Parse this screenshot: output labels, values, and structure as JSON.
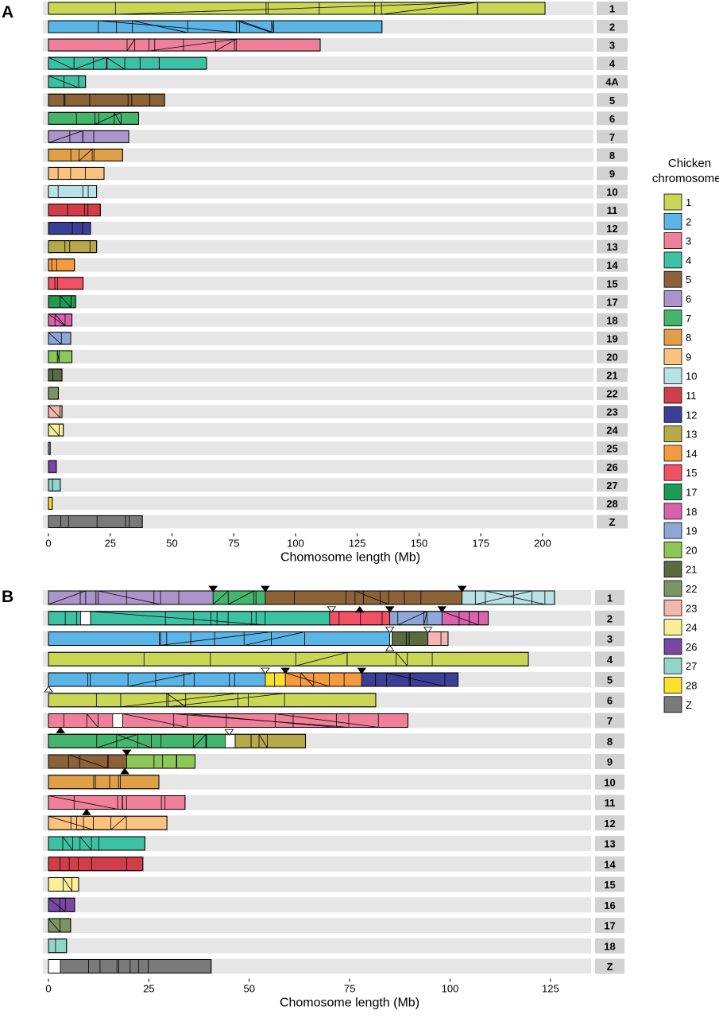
{
  "chart_data": [
    {
      "panel": "A",
      "type": "bar",
      "xlabel": "Chomosome length (Mb)",
      "xlim": [
        0,
        210
      ],
      "xticks": [
        0,
        25,
        50,
        75,
        100,
        125,
        150,
        175,
        200
      ],
      "chromosomes": [
        {
          "label": "1",
          "segments": [
            {
              "start": 0,
              "end": 201,
              "color": "1"
            }
          ]
        },
        {
          "label": "2",
          "segments": [
            {
              "start": 0,
              "end": 135,
              "color": "2"
            }
          ]
        },
        {
          "label": "3",
          "segments": [
            {
              "start": 0,
              "end": 110,
              "color": "3"
            }
          ]
        },
        {
          "label": "4",
          "segments": [
            {
              "start": 0,
              "end": 64,
              "color": "4"
            }
          ]
        },
        {
          "label": "4A",
          "segments": [
            {
              "start": 0,
              "end": 15,
              "color": "4"
            }
          ]
        },
        {
          "label": "5",
          "segments": [
            {
              "start": 0,
              "end": 47,
              "color": "5"
            }
          ]
        },
        {
          "label": "6",
          "segments": [
            {
              "start": 0,
              "end": 36.5,
              "color": "7"
            }
          ]
        },
        {
          "label": "7",
          "segments": [
            {
              "start": 0,
              "end": 32.5,
              "color": "6"
            }
          ]
        },
        {
          "label": "8",
          "segments": [
            {
              "start": 0,
              "end": 30,
              "color": "8"
            }
          ]
        },
        {
          "label": "9",
          "segments": [
            {
              "start": 0,
              "end": 22.5,
              "color": "9"
            }
          ]
        },
        {
          "label": "10",
          "segments": [
            {
              "start": 0,
              "end": 19.5,
              "color": "10"
            }
          ]
        },
        {
          "label": "11",
          "segments": [
            {
              "start": 0,
              "end": 21,
              "color": "11"
            }
          ]
        },
        {
          "label": "12",
          "segments": [
            {
              "start": 0,
              "end": 17,
              "color": "12"
            }
          ]
        },
        {
          "label": "13",
          "segments": [
            {
              "start": 0,
              "end": 19.5,
              "color": "13"
            }
          ]
        },
        {
          "label": "14",
          "segments": [
            {
              "start": 0,
              "end": 10.5,
              "color": "14"
            }
          ]
        },
        {
          "label": "15",
          "segments": [
            {
              "start": 0,
              "end": 14,
              "color": "15"
            }
          ]
        },
        {
          "label": "17",
          "segments": [
            {
              "start": 0,
              "end": 11,
              "color": "17"
            }
          ]
        },
        {
          "label": "18",
          "segments": [
            {
              "start": 0,
              "end": 9.5,
              "color": "18"
            }
          ]
        },
        {
          "label": "19",
          "segments": [
            {
              "start": 0,
              "end": 9,
              "color": "19"
            }
          ]
        },
        {
          "label": "20",
          "segments": [
            {
              "start": 0,
              "end": 9.5,
              "color": "20"
            }
          ]
        },
        {
          "label": "21",
          "segments": [
            {
              "start": 0,
              "end": 5.5,
              "color": "21"
            }
          ]
        },
        {
          "label": "22",
          "segments": [
            {
              "start": 0,
              "end": 4,
              "color": "22"
            }
          ]
        },
        {
          "label": "23",
          "segments": [
            {
              "start": 0,
              "end": 5.5,
              "color": "23"
            }
          ]
        },
        {
          "label": "24",
          "segments": [
            {
              "start": 0,
              "end": 6,
              "color": "24"
            }
          ]
        },
        {
          "label": "25",
          "segments": [
            {
              "start": 0,
              "end": 0.7,
              "color": "6"
            }
          ]
        },
        {
          "label": "26",
          "segments": [
            {
              "start": 0,
              "end": 3.2,
              "color": "26"
            }
          ]
        },
        {
          "label": "27",
          "segments": [
            {
              "start": 0,
              "end": 4.8,
              "color": "27"
            }
          ]
        },
        {
          "label": "28",
          "segments": [
            {
              "start": 0,
              "end": 1.5,
              "color": "28"
            }
          ]
        },
        {
          "label": "Z",
          "segments": [
            {
              "start": 0,
              "end": 38,
              "color": "Z"
            }
          ]
        }
      ]
    },
    {
      "panel": "B",
      "type": "bar",
      "xlabel": "Chomosome length (Mb)",
      "xlim": [
        0,
        128
      ],
      "xticks": [
        0,
        25,
        50,
        75,
        100,
        125
      ],
      "chromosomes": [
        {
          "label": "1",
          "segments": [
            {
              "start": 0,
              "end": 41,
              "color": "6"
            },
            {
              "start": 41,
              "end": 54,
              "color": "7"
            },
            {
              "start": 54,
              "end": 103,
              "color": "5"
            },
            {
              "start": 103,
              "end": 126,
              "color": "10"
            }
          ]
        },
        {
          "label": "2",
          "segments": [
            {
              "start": 0,
              "end": 8,
              "color": "4"
            },
            {
              "start": 8,
              "end": 10.5,
              "color": "white"
            },
            {
              "start": 10.5,
              "end": 70,
              "color": "4"
            },
            {
              "start": 70,
              "end": 85,
              "color": "15"
            },
            {
              "start": 85,
              "end": 98,
              "color": "19"
            },
            {
              "start": 98,
              "end": 109.5,
              "color": "18"
            }
          ]
        },
        {
          "label": "3",
          "segments": [
            {
              "start": 0,
              "end": 85,
              "color": "2"
            },
            {
              "start": 85,
              "end": 85.6,
              "color": "white"
            },
            {
              "start": 85.6,
              "end": 94.5,
              "color": "21"
            },
            {
              "start": 94.5,
              "end": 99.5,
              "color": "23"
            }
          ]
        },
        {
          "label": "4",
          "segments": [
            {
              "start": 0,
              "end": 119.5,
              "color": "1"
            }
          ]
        },
        {
          "label": "5",
          "segments": [
            {
              "start": 0,
              "end": 54,
              "color": "2"
            },
            {
              "start": 54,
              "end": 59,
              "color": "28"
            },
            {
              "start": 59,
              "end": 78,
              "color": "14"
            },
            {
              "start": 78,
              "end": 102,
              "color": "12"
            }
          ]
        },
        {
          "label": "6",
          "segments": [
            {
              "start": 0,
              "end": 81.5,
              "color": "1"
            }
          ]
        },
        {
          "label": "7",
          "segments": [
            {
              "start": 0,
              "end": 16,
              "color": "3"
            },
            {
              "start": 16,
              "end": 18.5,
              "color": "white"
            },
            {
              "start": 18.5,
              "end": 89.5,
              "color": "3"
            }
          ]
        },
        {
          "label": "8",
          "segments": [
            {
              "start": 0,
              "end": 44,
              "color": "7"
            },
            {
              "start": 44,
              "end": 46.5,
              "color": "white"
            },
            {
              "start": 46.5,
              "end": 64,
              "color": "13"
            }
          ]
        },
        {
          "label": "9",
          "segments": [
            {
              "start": 0,
              "end": 19.5,
              "color": "5"
            },
            {
              "start": 19.5,
              "end": 36.5,
              "color": "20"
            }
          ]
        },
        {
          "label": "10",
          "segments": [
            {
              "start": 0,
              "end": 27.5,
              "color": "8"
            }
          ]
        },
        {
          "label": "11",
          "segments": [
            {
              "start": 0,
              "end": 34,
              "color": "3"
            }
          ]
        },
        {
          "label": "12",
          "segments": [
            {
              "start": 0,
              "end": 29.5,
              "color": "9"
            }
          ]
        },
        {
          "label": "13",
          "segments": [
            {
              "start": 0,
              "end": 24,
              "color": "4"
            }
          ]
        },
        {
          "label": "14",
          "segments": [
            {
              "start": 0,
              "end": 23.5,
              "color": "11"
            }
          ]
        },
        {
          "label": "15",
          "segments": [
            {
              "start": 0,
              "end": 7.5,
              "color": "24"
            }
          ]
        },
        {
          "label": "16",
          "segments": [
            {
              "start": 0,
              "end": 6.5,
              "color": "26"
            }
          ]
        },
        {
          "label": "17",
          "segments": [
            {
              "start": 0,
              "end": 5.5,
              "color": "22"
            }
          ]
        },
        {
          "label": "18",
          "segments": [
            {
              "start": 0,
              "end": 4.5,
              "color": "27"
            }
          ]
        },
        {
          "label": "Z",
          "segments": [
            {
              "start": 0,
              "end": 3,
              "color": "white"
            },
            {
              "start": 3,
              "end": 40.5,
              "color": "Z"
            }
          ]
        }
      ],
      "markers": [
        {
          "chr": "1",
          "pos": 41,
          "side": "top",
          "fill": "black"
        },
        {
          "chr": "1",
          "pos": 54,
          "side": "top",
          "fill": "black"
        },
        {
          "chr": "1",
          "pos": 103,
          "side": "top",
          "fill": "black"
        },
        {
          "chr": "2",
          "pos": 70.5,
          "side": "top",
          "fill": "white"
        },
        {
          "chr": "2",
          "pos": 77.5,
          "side": "top-inner",
          "fill": "black"
        },
        {
          "chr": "2",
          "pos": 85,
          "side": "top",
          "fill": "black"
        },
        {
          "chr": "2",
          "pos": 98,
          "side": "top",
          "fill": "black"
        },
        {
          "chr": "3",
          "pos": 85,
          "side": "top",
          "fill": "white"
        },
        {
          "chr": "3",
          "pos": 85,
          "side": "bottom",
          "fill": "white"
        },
        {
          "chr": "3",
          "pos": 94.5,
          "side": "top",
          "fill": "white"
        },
        {
          "chr": "5",
          "pos": 0,
          "side": "bottom",
          "fill": "white"
        },
        {
          "chr": "5",
          "pos": 54,
          "side": "top",
          "fill": "white"
        },
        {
          "chr": "5",
          "pos": 59,
          "side": "top",
          "fill": "black"
        },
        {
          "chr": "5",
          "pos": 78,
          "side": "top",
          "fill": "black"
        },
        {
          "chr": "7",
          "pos": 3,
          "side": "bottom",
          "fill": "black"
        },
        {
          "chr": "8",
          "pos": 45,
          "side": "top",
          "fill": "white"
        },
        {
          "chr": "9",
          "pos": 19.5,
          "side": "top",
          "fill": "black"
        },
        {
          "chr": "9",
          "pos": 19,
          "side": "bottom",
          "fill": "black"
        },
        {
          "chr": "11",
          "pos": 9.5,
          "side": "bottom",
          "fill": "black"
        }
      ]
    }
  ],
  "panel_labels": {
    "A": "A",
    "B": "B"
  },
  "legend": {
    "title_line1": "Chicken",
    "title_line2": "chromosomes",
    "items": [
      {
        "label": "1",
        "color": "#c8d754"
      },
      {
        "label": "2",
        "color": "#5ab4e5"
      },
      {
        "label": "3",
        "color": "#f07f9a"
      },
      {
        "label": "4",
        "color": "#3cc2a2"
      },
      {
        "label": "5",
        "color": "#8c6239"
      },
      {
        "label": "6",
        "color": "#a995c9"
      },
      {
        "label": "7",
        "color": "#43b66b"
      },
      {
        "label": "8",
        "color": "#e0a048"
      },
      {
        "label": "9",
        "color": "#fbc17e"
      },
      {
        "label": "10",
        "color": "#b8e2e6"
      },
      {
        "label": "11",
        "color": "#d23d4b"
      },
      {
        "label": "12",
        "color": "#3c3f96"
      },
      {
        "label": "13",
        "color": "#b5a94a"
      },
      {
        "label": "14",
        "color": "#f69a40"
      },
      {
        "label": "15",
        "color": "#f05164"
      },
      {
        "label": "17",
        "color": "#1f9a52"
      },
      {
        "label": "18",
        "color": "#d962ad"
      },
      {
        "label": "19",
        "color": "#8fa7d6"
      },
      {
        "label": "20",
        "color": "#8cc758"
      },
      {
        "label": "21",
        "color": "#5a6b3f"
      },
      {
        "label": "22",
        "color": "#7c9464"
      },
      {
        "label": "23",
        "color": "#f4b6b0"
      },
      {
        "label": "24",
        "color": "#f9ef96"
      },
      {
        "label": "26",
        "color": "#7b47a4"
      },
      {
        "label": "27",
        "color": "#8fd5c8"
      },
      {
        "label": "28",
        "color": "#fce02a"
      },
      {
        "label": "Z",
        "color": "#7a7a7a"
      }
    ]
  }
}
